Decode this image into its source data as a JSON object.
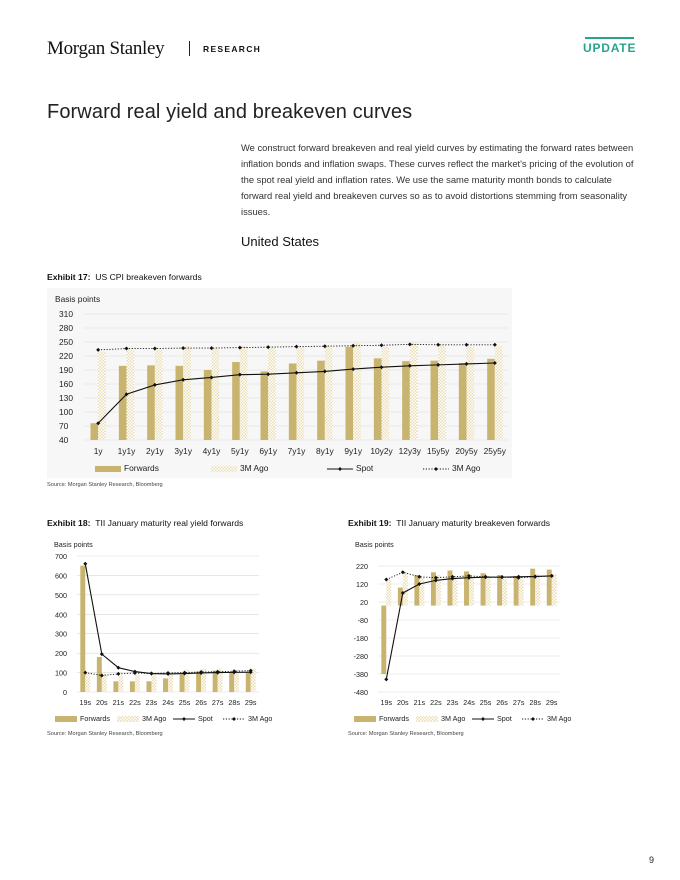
{
  "header": {
    "brand": "Morgan Stanley",
    "research_label": "RESEARCH",
    "badge": "UPDATE"
  },
  "page_title": "Forward real yield and breakeven curves",
  "intro": "We construct forward breakeven and real yield curves by estimating the forward rates between inflation bonds and inflation swaps. These curves reflect the market's pricing of the evolution of the spot real yield and inflation rates. We use the same maturity month bonds to calculate forward real yield and breakeven curves so as to avoid distortions stemming from seasonality issues.",
  "section_heading": "United States",
  "page_number": "9",
  "colors": {
    "forwards": "#c8b46e",
    "three_m_ago_fill": "#e8ddb4",
    "spot": "#111111",
    "accent": "#27a58a"
  },
  "exhibits": [
    {
      "label": "Exhibit 17:",
      "title": "US CPI breakeven forwards",
      "source": "Source: Morgan Stanley Research, Bloomberg"
    },
    {
      "label": "Exhibit 18:",
      "title": "TII January maturity real yield forwards",
      "source": "Source: Morgan Stanley Research, Bloomberg"
    },
    {
      "label": "Exhibit 19:",
      "title": "TII January maturity breakeven forwards",
      "source": "Source: Morgan Stanley Research, Bloomberg"
    }
  ],
  "chart_data": [
    {
      "type": "bar",
      "ylabel": "Basis points",
      "ylim": [
        40,
        310
      ],
      "yticks": [
        40,
        70,
        100,
        130,
        160,
        190,
        220,
        250,
        280,
        310
      ],
      "categories": [
        "1y",
        "1y1y",
        "2y1y",
        "3y1y",
        "4y1y",
        "5y1y",
        "6y1y",
        "7y1y",
        "8y1y",
        "9y1y",
        "10y2y",
        "12y3y",
        "15y5y",
        "20y5y",
        "25y5y"
      ],
      "series": [
        {
          "name": "Forwards",
          "kind": "bar",
          "values": [
            76,
            199,
            200,
            199,
            190,
            207,
            187,
            204,
            210,
            240,
            215,
            209,
            210,
            205,
            214
          ]
        },
        {
          "name": "3M Ago",
          "kind": "bar-pattern",
          "values": [
            229,
            234,
            233,
            241,
            237,
            242,
            240,
            239,
            243,
            250,
            240,
            248,
            245,
            240,
            242
          ]
        },
        {
          "name": "Spot",
          "kind": "line",
          "values": [
            76,
            138,
            158,
            169,
            174,
            180,
            181,
            184,
            187,
            192,
            196,
            199,
            201,
            203,
            205
          ]
        },
        {
          "name": "3M Ago",
          "kind": "dotted-line",
          "values": [
            233,
            236,
            236,
            237,
            237,
            238,
            239,
            240,
            241,
            242,
            243,
            245,
            244,
            244,
            244
          ]
        }
      ],
      "legend_position": "bottom",
      "grid": true
    },
    {
      "type": "bar",
      "ylabel": "Basis points",
      "ylim": [
        0,
        700
      ],
      "yticks": [
        0,
        100,
        200,
        300,
        400,
        500,
        600,
        700
      ],
      "categories": [
        "19s",
        "20s",
        "21s",
        "22s",
        "23s",
        "24s",
        "25s",
        "26s",
        "27s",
        "28s",
        "29s"
      ],
      "series": [
        {
          "name": "Forwards",
          "kind": "bar",
          "values": [
            650,
            180,
            55,
            55,
            55,
            70,
            90,
            105,
            110,
            100,
            100
          ]
        },
        {
          "name": "3M Ago",
          "kind": "bar-pattern",
          "values": [
            100,
            95,
            85,
            90,
            100,
            100,
            115,
            120,
            120,
            115,
            120
          ]
        },
        {
          "name": "Spot",
          "kind": "line",
          "values": [
            660,
            195,
            125,
            105,
            95,
            93,
            95,
            98,
            100,
            101,
            102
          ]
        },
        {
          "name": "3M Ago",
          "kind": "dotted-line",
          "values": [
            100,
            85,
            93,
            98,
            95,
            98,
            100,
            103,
            104,
            107,
            110
          ]
        }
      ],
      "legend_position": "bottom",
      "grid": true
    },
    {
      "type": "bar",
      "ylabel": "Basis points",
      "ylim": [
        -480,
        220
      ],
      "yticks": [
        -480,
        -380,
        -280,
        -180,
        -80,
        20,
        120,
        220
      ],
      "categories": [
        "19s",
        "20s",
        "21s",
        "22s",
        "23s",
        "24s",
        "25s",
        "26s",
        "27s",
        "28s",
        "29s"
      ],
      "series": [
        {
          "name": "Forwards",
          "kind": "bar",
          "values": [
            -380,
            100,
            170,
            185,
            195,
            190,
            180,
            170,
            165,
            205,
            200
          ]
        },
        {
          "name": "3M Ago",
          "kind": "bar-pattern",
          "values": [
            145,
            185,
            155,
            170,
            160,
            160,
            160,
            150,
            150,
            175,
            175
          ]
        },
        {
          "name": "Spot",
          "kind": "line",
          "values": [
            -410,
            70,
            120,
            140,
            150,
            155,
            158,
            158,
            160,
            162,
            165
          ]
        },
        {
          "name": "3M Ago",
          "kind": "dotted-line",
          "values": [
            145,
            185,
            160,
            155,
            160,
            165,
            160,
            158,
            155,
            160,
            165
          ]
        }
      ],
      "legend_position": "bottom",
      "grid": true
    }
  ]
}
